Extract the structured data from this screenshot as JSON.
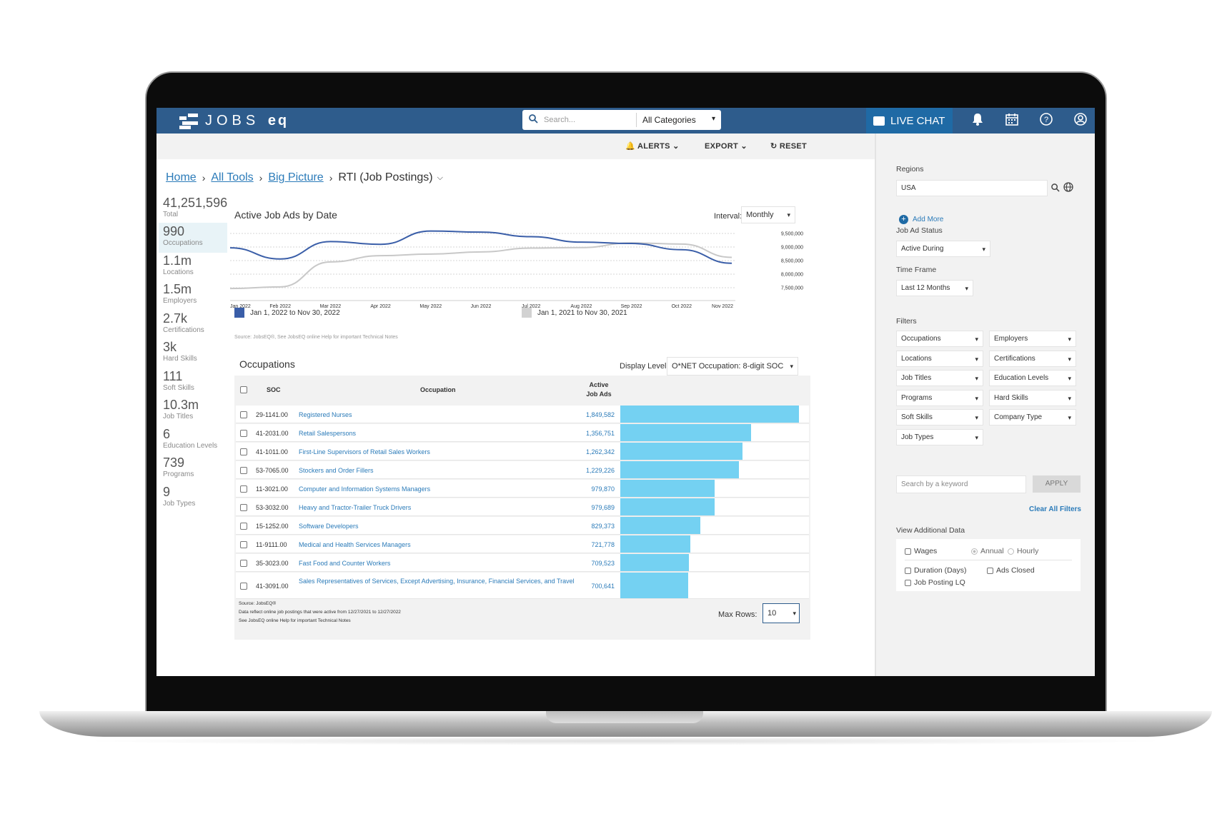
{
  "app": {
    "logo_text": "JOBS",
    "logo_text_bold": "eq"
  },
  "topbar": {
    "search_placeholder": "Search...",
    "category": "All Categories",
    "live_chat": "LIVE CHAT",
    "icons": [
      "bell-icon",
      "calendar-icon",
      "help-icon",
      "user-icon"
    ]
  },
  "toolbar": {
    "alerts": "ALERTS",
    "export": "EXPORT",
    "reset": "RESET"
  },
  "breadcrumb": {
    "home": "Home",
    "all_tools": "All Tools",
    "big_picture": "Big Picture",
    "current": "RTI (Job Postings)"
  },
  "stats": [
    {
      "value": "41,251,596",
      "label": "Total"
    },
    {
      "value": "990",
      "label": "Occupations"
    },
    {
      "value": "1.1m",
      "label": "Locations"
    },
    {
      "value": "1.5m",
      "label": "Employers"
    },
    {
      "value": "2.7k",
      "label": "Certifications"
    },
    {
      "value": "3k",
      "label": "Hard Skills"
    },
    {
      "value": "111",
      "label": "Soft Skills"
    },
    {
      "value": "10.3m",
      "label": "Job Titles"
    },
    {
      "value": "6",
      "label": "Education Levels"
    },
    {
      "value": "739",
      "label": "Programs"
    },
    {
      "value": "9",
      "label": "Job Types"
    }
  ],
  "chart_header": {
    "title": "Active Job Ads by Date",
    "interval_label": "Interval:",
    "interval_value": "Monthly"
  },
  "chart_data": {
    "type": "line",
    "title": "Active Job Ads by Date",
    "x": [
      "Jan 2022",
      "Feb 2022",
      "Mar 2022",
      "Apr 2022",
      "May 2022",
      "Jun 2022",
      "Jul 2022",
      "Aug 2022",
      "Sep 2022",
      "Oct 2022",
      "Nov 2022"
    ],
    "y_ticks": [
      "9,500,000",
      "9,000,000",
      "8,500,000",
      "8,000,000",
      "7,500,000"
    ],
    "ylim": [
      7500000,
      9500000
    ],
    "grid": true,
    "series": [
      {
        "name": "Jan 1, 2022 to Nov 30, 2022",
        "color": "#3a5ea8",
        "values": [
          8970000,
          8560000,
          9200000,
          9100000,
          9590000,
          9550000,
          9380000,
          9180000,
          9130000,
          8900000,
          8400000
        ]
      },
      {
        "name": "Jan 1, 2021 to Nov 30, 2021",
        "color": "#c8c8c8",
        "values": [
          7470000,
          7530000,
          8450000,
          8680000,
          8740000,
          8820000,
          8960000,
          8980000,
          9150000,
          9110000,
          8620000
        ]
      }
    ],
    "source": "Source: JobsEQ®, See JobsEQ online Help for important Technical Notes"
  },
  "occupations": {
    "title": "Occupations",
    "display_level_label": "Display Level:",
    "display_level_value": "O*NET Occupation: 8-digit SOC",
    "headers": {
      "soc": "SOC",
      "occupation": "Occupation",
      "ads_line1": "Active",
      "ads_line2": "Job Ads"
    },
    "rows": [
      {
        "soc": "29-1141.00",
        "occupation": "Registered Nurses",
        "ads": "1,849,582",
        "value": 1849582
      },
      {
        "soc": "41-2031.00",
        "occupation": "Retail Salespersons",
        "ads": "1,356,751",
        "value": 1356751
      },
      {
        "soc": "41-1011.00",
        "occupation": "First-Line Supervisors of Retail Sales Workers",
        "ads": "1,262,342",
        "value": 1262342
      },
      {
        "soc": "53-7065.00",
        "occupation": "Stockers and Order Fillers",
        "ads": "1,229,226",
        "value": 1229226
      },
      {
        "soc": "11-3021.00",
        "occupation": "Computer and Information Systems Managers",
        "ads": "979,870",
        "value": 979870
      },
      {
        "soc": "53-3032.00",
        "occupation": "Heavy and Tractor-Trailer Truck Drivers",
        "ads": "979,689",
        "value": 979689
      },
      {
        "soc": "15-1252.00",
        "occupation": "Software Developers",
        "ads": "829,373",
        "value": 829373
      },
      {
        "soc": "11-9111.00",
        "occupation": "Medical and Health Services Managers",
        "ads": "721,778",
        "value": 721778
      },
      {
        "soc": "35-3023.00",
        "occupation": "Fast Food and Counter Workers",
        "ads": "709,523",
        "value": 709523
      },
      {
        "soc": "41-3091.00",
        "occupation": "Sales Representatives of Services, Except Advertising, Insurance, Financial Services, and Travel",
        "ads": "700,641",
        "value": 700641
      }
    ],
    "footnotes": [
      "Source: JobsEQ®",
      "Data reflect online job postings that were active from 12/27/2021 to 12/27/2022",
      "See JobsEQ online Help for important Technical Notes"
    ],
    "max_rows_label": "Max Rows:",
    "max_rows_value": "10"
  },
  "panel": {
    "regions_label": "Regions",
    "region_value": "USA",
    "add_more": "Add More",
    "status_label": "Job Ad Status",
    "status_value": "Active During",
    "timeframe_label": "Time Frame",
    "timeframe_value": "Last 12 Months",
    "filters_label": "Filters",
    "filters": [
      "Occupations",
      "Employers",
      "Locations",
      "Certifications",
      "Job Titles",
      "Education Levels",
      "Programs",
      "Hard Skills",
      "Soft Skills",
      "Company Type",
      "Job Types"
    ],
    "keyword_placeholder": "Search by a keyword",
    "apply": "APPLY",
    "clear": "Clear All Filters",
    "additional_label": "View Additional Data",
    "wages": "Wages",
    "annual": "Annual",
    "hourly": "Hourly",
    "duration": "Duration (Days)",
    "ads_closed": "Ads Closed",
    "lq": "Job Posting LQ"
  }
}
